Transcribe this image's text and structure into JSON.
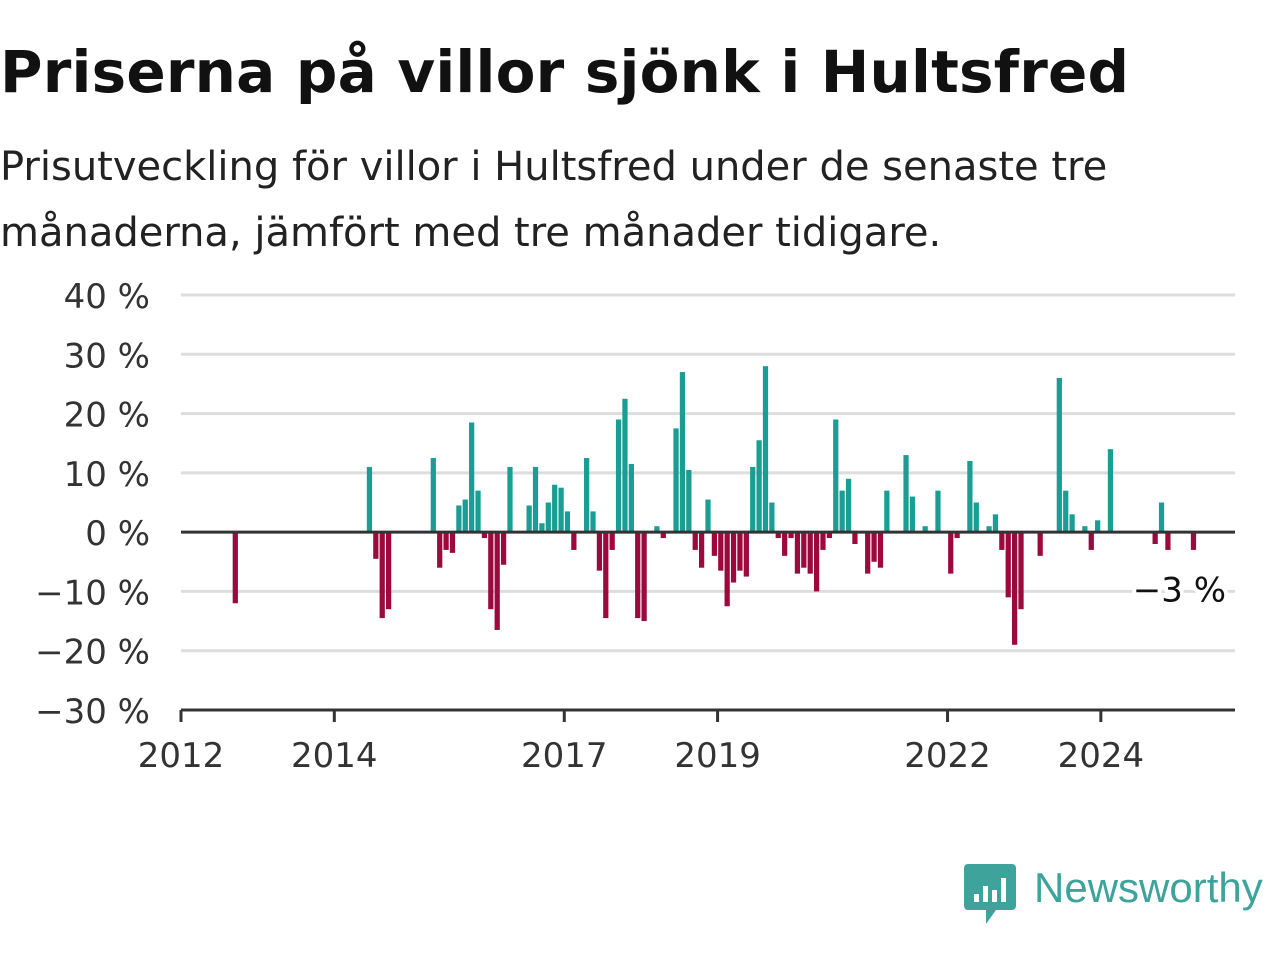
{
  "header": {
    "title": "Priserna på villor sjönk i Hultsfred",
    "subtitle": "Prisutveckling för villor i Hultsfred under de senaste tre månaderna, jämfört med tre månader tidigare."
  },
  "brand": {
    "name": "Newsworthy",
    "icon": "newsworthy-logo-icon",
    "color": "#3ea39b"
  },
  "colors": {
    "positive": "#1a9e93",
    "negative": "#9c0a3d",
    "grid": "#dddddd",
    "axis": "#333333"
  },
  "chart_data": {
    "type": "bar",
    "x_unit": "month",
    "ylim": [
      -30,
      40
    ],
    "yticks": [
      40,
      30,
      20,
      10,
      0,
      -10,
      -20,
      -30
    ],
    "ytick_labels": [
      "40 %",
      "30 %",
      "20 %",
      "10 %",
      "0 %",
      "−10 %",
      "−20 %",
      "−30 %"
    ],
    "xticks": [
      "2012",
      "2014",
      "2017",
      "2019",
      "2022",
      "2024"
    ],
    "xlim": [
      "2012-01",
      "2025-10"
    ],
    "grid": true,
    "annotation": {
      "date": "2025-03",
      "text": "−3 %"
    },
    "points": [
      {
        "date": "2012-09",
        "value": -12
      },
      {
        "date": "2014-06",
        "value": 11
      },
      {
        "date": "2014-07",
        "value": -4.5
      },
      {
        "date": "2014-08",
        "value": -14.5
      },
      {
        "date": "2014-09",
        "value": -13
      },
      {
        "date": "2015-04",
        "value": 12.5
      },
      {
        "date": "2015-05",
        "value": -6
      },
      {
        "date": "2015-06",
        "value": -3
      },
      {
        "date": "2015-07",
        "value": -3.5
      },
      {
        "date": "2015-08",
        "value": 4.5
      },
      {
        "date": "2015-09",
        "value": 5.5
      },
      {
        "date": "2015-10",
        "value": 18.5
      },
      {
        "date": "2015-11",
        "value": 7
      },
      {
        "date": "2015-12",
        "value": -1
      },
      {
        "date": "2016-01",
        "value": -13
      },
      {
        "date": "2016-02",
        "value": -16.5
      },
      {
        "date": "2016-03",
        "value": -5.5
      },
      {
        "date": "2016-04",
        "value": 11
      },
      {
        "date": "2016-07",
        "value": 4.5
      },
      {
        "date": "2016-08",
        "value": 11
      },
      {
        "date": "2016-09",
        "value": 1.5
      },
      {
        "date": "2016-10",
        "value": 5
      },
      {
        "date": "2016-11",
        "value": 8
      },
      {
        "date": "2016-12",
        "value": 7.5
      },
      {
        "date": "2017-01",
        "value": 3.5
      },
      {
        "date": "2017-02",
        "value": -3
      },
      {
        "date": "2017-04",
        "value": 12.5
      },
      {
        "date": "2017-05",
        "value": 3.5
      },
      {
        "date": "2017-06",
        "value": -6.5
      },
      {
        "date": "2017-07",
        "value": -14.5
      },
      {
        "date": "2017-08",
        "value": -3
      },
      {
        "date": "2017-09",
        "value": 19
      },
      {
        "date": "2017-10",
        "value": 22.5
      },
      {
        "date": "2017-11",
        "value": 11.5
      },
      {
        "date": "2017-12",
        "value": -14.5
      },
      {
        "date": "2018-01",
        "value": -15
      },
      {
        "date": "2018-03",
        "value": 1
      },
      {
        "date": "2018-04",
        "value": -1
      },
      {
        "date": "2018-06",
        "value": 17.5
      },
      {
        "date": "2018-07",
        "value": 27
      },
      {
        "date": "2018-08",
        "value": 10.5
      },
      {
        "date": "2018-09",
        "value": -3
      },
      {
        "date": "2018-10",
        "value": -6
      },
      {
        "date": "2018-11",
        "value": 5.5
      },
      {
        "date": "2018-12",
        "value": -4
      },
      {
        "date": "2019-01",
        "value": -6.5
      },
      {
        "date": "2019-02",
        "value": -12.5
      },
      {
        "date": "2019-03",
        "value": -8.5
      },
      {
        "date": "2019-04",
        "value": -6.5
      },
      {
        "date": "2019-05",
        "value": -7.5
      },
      {
        "date": "2019-06",
        "value": 11
      },
      {
        "date": "2019-07",
        "value": 15.5
      },
      {
        "date": "2019-08",
        "value": 28
      },
      {
        "date": "2019-09",
        "value": 5
      },
      {
        "date": "2019-10",
        "value": -1
      },
      {
        "date": "2019-11",
        "value": -4
      },
      {
        "date": "2019-12",
        "value": -1
      },
      {
        "date": "2020-01",
        "value": -7
      },
      {
        "date": "2020-02",
        "value": -6
      },
      {
        "date": "2020-03",
        "value": -7
      },
      {
        "date": "2020-04",
        "value": -10
      },
      {
        "date": "2020-05",
        "value": -3
      },
      {
        "date": "2020-06",
        "value": -1
      },
      {
        "date": "2020-07",
        "value": 19
      },
      {
        "date": "2020-08",
        "value": 7
      },
      {
        "date": "2020-09",
        "value": 9
      },
      {
        "date": "2020-10",
        "value": -2
      },
      {
        "date": "2020-12",
        "value": -7
      },
      {
        "date": "2021-01",
        "value": -5
      },
      {
        "date": "2021-02",
        "value": -6
      },
      {
        "date": "2021-03",
        "value": 7
      },
      {
        "date": "2021-06",
        "value": 13
      },
      {
        "date": "2021-07",
        "value": 6
      },
      {
        "date": "2021-09",
        "value": 1
      },
      {
        "date": "2021-11",
        "value": 7
      },
      {
        "date": "2022-01",
        "value": -7
      },
      {
        "date": "2022-02",
        "value": -1
      },
      {
        "date": "2022-04",
        "value": 12
      },
      {
        "date": "2022-05",
        "value": 5
      },
      {
        "date": "2022-07",
        "value": 1
      },
      {
        "date": "2022-08",
        "value": 3
      },
      {
        "date": "2022-09",
        "value": -3
      },
      {
        "date": "2022-10",
        "value": -11
      },
      {
        "date": "2022-11",
        "value": -19
      },
      {
        "date": "2022-12",
        "value": -13
      },
      {
        "date": "2023-03",
        "value": -4
      },
      {
        "date": "2023-06",
        "value": 26
      },
      {
        "date": "2023-07",
        "value": 7
      },
      {
        "date": "2023-08",
        "value": 3
      },
      {
        "date": "2023-10",
        "value": 1
      },
      {
        "date": "2023-11",
        "value": -3
      },
      {
        "date": "2023-12",
        "value": 2
      },
      {
        "date": "2024-02",
        "value": 14
      },
      {
        "date": "2024-09",
        "value": -2
      },
      {
        "date": "2024-10",
        "value": 5
      },
      {
        "date": "2024-11",
        "value": -3
      },
      {
        "date": "2025-03",
        "value": -3
      }
    ]
  }
}
